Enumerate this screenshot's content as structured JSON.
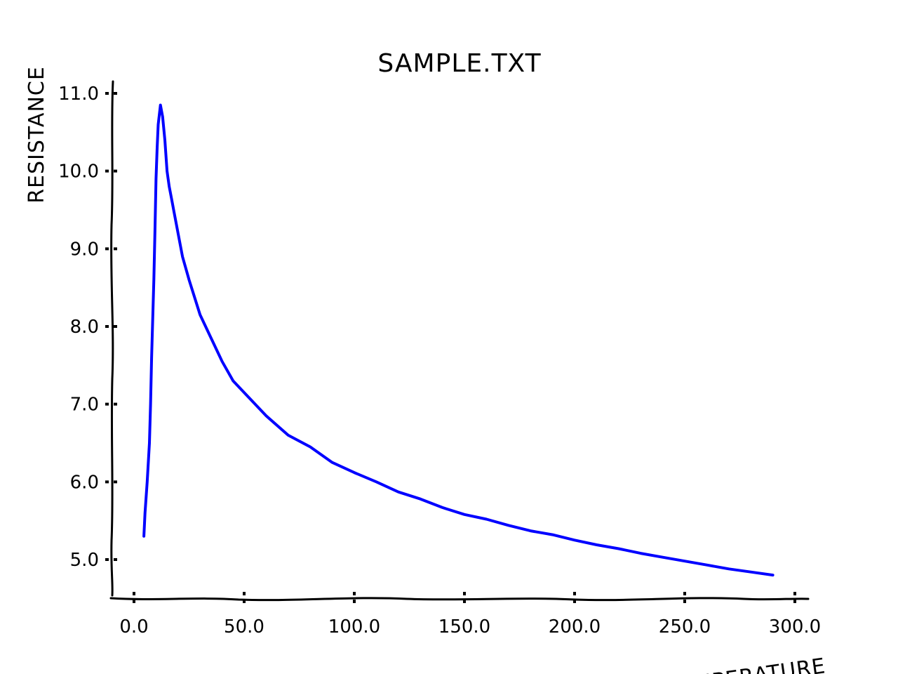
{
  "chart_data": {
    "type": "line",
    "title": "SAMPLE.TXT",
    "xlabel": "TEMPERATURE",
    "ylabel": "RESISTANCE",
    "xlim": [
      -10,
      300
    ],
    "ylim": [
      4.5,
      11.2
    ],
    "xticks": [
      0,
      50,
      100,
      150,
      200,
      250,
      300
    ],
    "xtick_labels": [
      "0.0",
      "50.0",
      "100.0",
      "150.0",
      "200.0",
      "250.0",
      "300.0"
    ],
    "yticks": [
      5,
      6,
      7,
      8,
      9,
      10,
      11
    ],
    "ytick_labels": [
      "5.0",
      "6.0",
      "7.0",
      "8.0",
      "9.0",
      "10.0",
      "11.0"
    ],
    "grid": false,
    "series": [
      {
        "color": "#0000ff",
        "x": [
          4.5,
          5,
          6,
          7,
          7.5,
          8,
          8.5,
          9,
          9.5,
          10,
          10.5,
          11,
          12,
          13,
          14,
          15,
          16,
          17,
          18,
          20,
          22,
          25,
          30,
          35,
          40,
          45,
          50,
          60,
          70,
          80,
          90,
          100,
          110,
          120,
          130,
          140,
          150,
          160,
          170,
          180,
          190,
          200,
          210,
          220,
          230,
          240,
          250,
          260,
          270,
          280,
          290
        ],
        "y": [
          5.3,
          5.6,
          6.0,
          6.5,
          7.0,
          7.6,
          8.1,
          8.6,
          9.2,
          9.9,
          10.3,
          10.6,
          10.85,
          10.7,
          10.4,
          10.0,
          9.8,
          9.65,
          9.5,
          9.2,
          8.9,
          8.6,
          8.15,
          7.85,
          7.55,
          7.3,
          7.15,
          6.85,
          6.6,
          6.45,
          6.25,
          6.12,
          6.0,
          5.87,
          5.78,
          5.67,
          5.58,
          5.52,
          5.44,
          5.37,
          5.32,
          5.25,
          5.19,
          5.14,
          5.08,
          5.03,
          4.98,
          4.93,
          4.88,
          4.84,
          4.8
        ]
      }
    ]
  }
}
